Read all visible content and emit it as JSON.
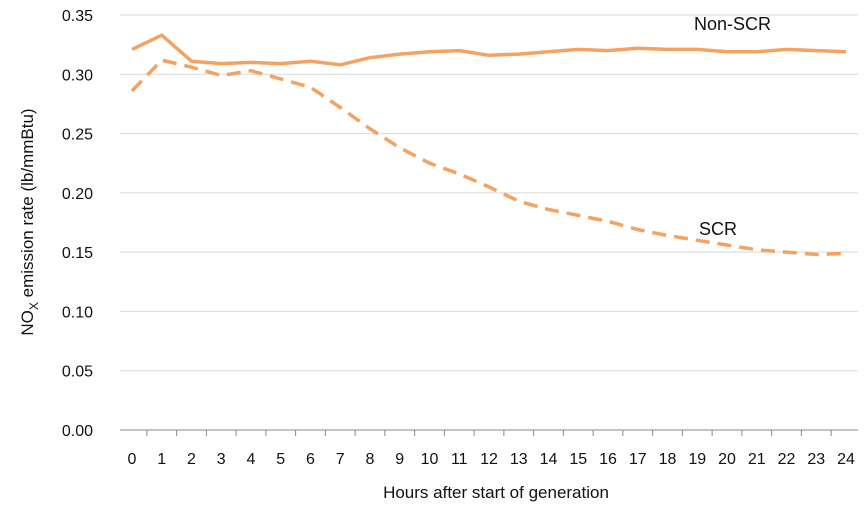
{
  "chart_data": {
    "type": "line",
    "title": "",
    "xlabel": "Hours after start of generation",
    "ylabel_main": "NO",
    "ylabel_sub": "X",
    "ylabel_rest": " emission rate (lb/mmBtu)",
    "ylim": [
      0,
      0.35
    ],
    "xlim": [
      0,
      24
    ],
    "grid": true,
    "line_color": "#f4a261",
    "x": [
      0,
      1,
      2,
      3,
      4,
      5,
      6,
      7,
      8,
      9,
      10,
      11,
      12,
      13,
      14,
      15,
      16,
      17,
      18,
      19,
      20,
      21,
      22,
      23,
      24
    ],
    "yticks": [
      "0.00",
      "0.05",
      "0.10",
      "0.15",
      "0.20",
      "0.25",
      "0.30",
      "0.35"
    ],
    "series": [
      {
        "name": "Non-SCR",
        "style": "solid",
        "values": [
          0.321,
          0.333,
          0.311,
          0.309,
          0.31,
          0.309,
          0.311,
          0.308,
          0.314,
          0.317,
          0.319,
          0.32,
          0.316,
          0.317,
          0.319,
          0.321,
          0.32,
          0.322,
          0.321,
          0.321,
          0.319,
          0.319,
          0.321,
          0.32,
          0.319
        ]
      },
      {
        "name": "SCR",
        "style": "dashed",
        "values": [
          0.286,
          0.312,
          0.306,
          0.299,
          0.303,
          0.296,
          0.289,
          0.272,
          0.254,
          0.238,
          0.225,
          0.216,
          0.205,
          0.193,
          0.186,
          0.181,
          0.176,
          0.169,
          0.164,
          0.16,
          0.156,
          0.152,
          0.15,
          0.148,
          0.149
        ]
      }
    ]
  }
}
